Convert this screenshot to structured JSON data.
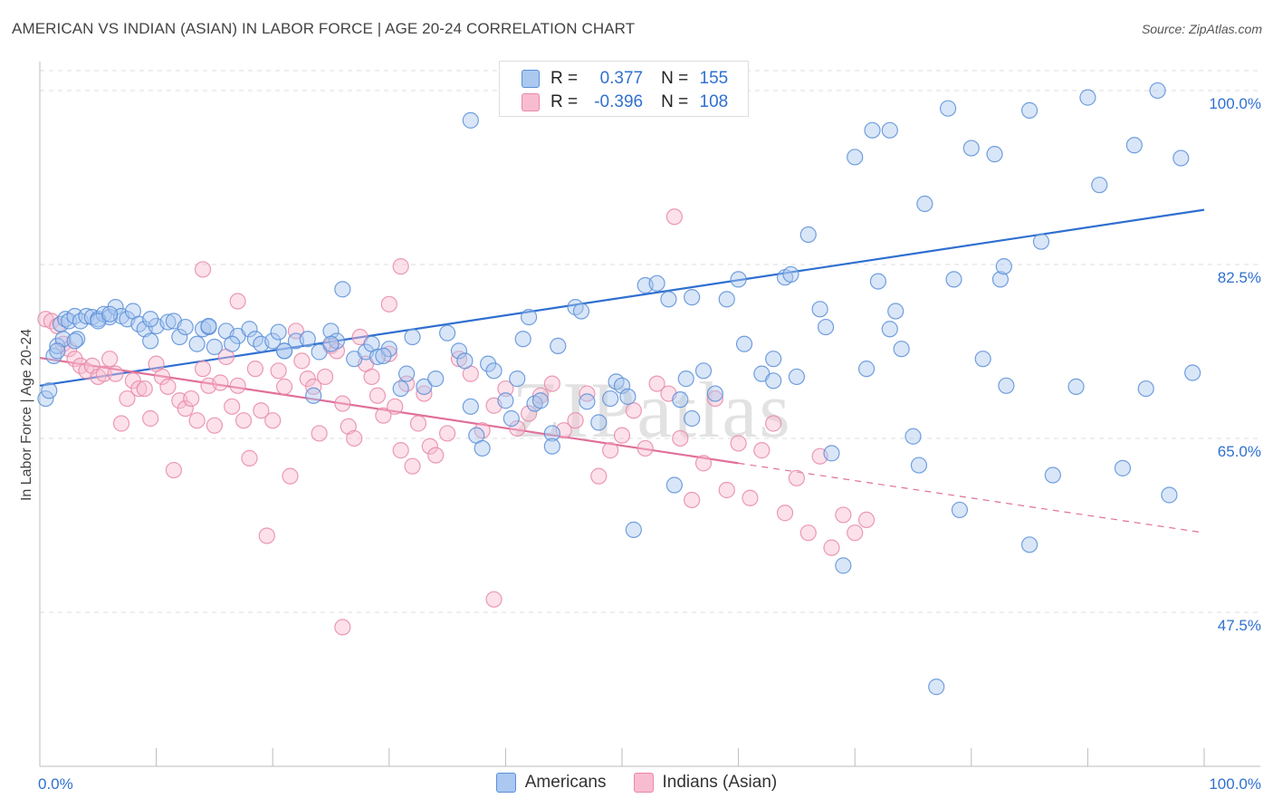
{
  "title": "AMERICAN VS INDIAN (ASIAN) IN LABOR FORCE | AGE 20-24 CORRELATION CHART",
  "source": "Source: ZipAtlas.com",
  "watermark": "ZIPatlas",
  "y_axis_label": "In Labor Force | Age 20-24",
  "legend": {
    "americans": {
      "r_label": "R =",
      "r_value": "0.377",
      "n_label": "N =",
      "n_value": "155"
    },
    "indians": {
      "r_label": "R =",
      "r_value": "-0.396",
      "n_label": "N =",
      "n_value": "108"
    }
  },
  "colors": {
    "americans_fill": "#aac8f0",
    "americans_stroke": "#5a8fd8",
    "americans_line": "#2f6fd0",
    "indians_fill": "#f8bcd0",
    "indians_stroke": "#e888a8",
    "indians_line": "#e0709a",
    "tick_text": "#3070d0",
    "grid": "#dddddd"
  },
  "chart_data": {
    "type": "scatter",
    "title": "AMERICAN VS INDIAN (ASIAN) IN LABOR FORCE | AGE 20-24 CORRELATION CHART",
    "xlabel": "",
    "ylabel": "In Labor Force | Age 20-24",
    "xlim": [
      0,
      100
    ],
    "ylim": [
      32,
      102
    ],
    "x_tick_labels": [
      "0.0%",
      "100.0%"
    ],
    "y_ticks": [
      {
        "value": 47.5,
        "label": "47.5%"
      },
      {
        "value": 65.0,
        "label": "65.0%"
      },
      {
        "value": 82.5,
        "label": "82.5%"
      },
      {
        "value": 100.0,
        "label": "100.0%"
      }
    ],
    "series": [
      {
        "name": "Americans",
        "r": 0.377,
        "n": 155,
        "trend": {
          "x": [
            0,
            100
          ],
          "y": [
            70.3,
            88.0
          ]
        },
        "points": [
          [
            0.5,
            69
          ],
          [
            0.8,
            69.8
          ],
          [
            1.2,
            73.3
          ],
          [
            1.5,
            74.3
          ],
          [
            1.8,
            76.5
          ],
          [
            2,
            75
          ],
          [
            2.2,
            77
          ],
          [
            2.5,
            76.8
          ],
          [
            3,
            77.3
          ],
          [
            3.2,
            75
          ],
          [
            3.5,
            76.8
          ],
          [
            4,
            77.3
          ],
          [
            4.5,
            77.2
          ],
          [
            5,
            77
          ],
          [
            5.5,
            77.5
          ],
          [
            6,
            77.2
          ],
          [
            6.5,
            78.2
          ],
          [
            7,
            77.3
          ],
          [
            7.5,
            77
          ],
          [
            8,
            77.8
          ],
          [
            8.5,
            76.5
          ],
          [
            9,
            76
          ],
          [
            9.5,
            74.8
          ],
          [
            10,
            76.3
          ],
          [
            11,
            76.7
          ],
          [
            11.5,
            76.8
          ],
          [
            12,
            75.2
          ],
          [
            12.5,
            76.2
          ],
          [
            13.5,
            74.5
          ],
          [
            14,
            76
          ],
          [
            14.5,
            76.2
          ],
          [
            15,
            74.2
          ],
          [
            16,
            75.8
          ],
          [
            17,
            75.3
          ],
          [
            18,
            76
          ],
          [
            18.5,
            75
          ],
          [
            19,
            74.5
          ],
          [
            20,
            74.8
          ],
          [
            20.5,
            75.7
          ],
          [
            21,
            73.8
          ],
          [
            22,
            74.8
          ],
          [
            23,
            75
          ],
          [
            23.5,
            69.3
          ],
          [
            24,
            73.7
          ],
          [
            25,
            75.8
          ],
          [
            25.5,
            74.8
          ],
          [
            26,
            80
          ],
          [
            27,
            73
          ],
          [
            28,
            73.7
          ],
          [
            28.5,
            74.5
          ],
          [
            29,
            73.2
          ],
          [
            30,
            74
          ],
          [
            31,
            70
          ],
          [
            31.5,
            71.5
          ],
          [
            32,
            75.2
          ],
          [
            33,
            70.2
          ],
          [
            34,
            71
          ],
          [
            35,
            75.6
          ],
          [
            36,
            73.8
          ],
          [
            37,
            68.2
          ],
          [
            37.5,
            65.3
          ],
          [
            38,
            64
          ],
          [
            38.5,
            72.5
          ],
          [
            39,
            71.8
          ],
          [
            40,
            68.8
          ],
          [
            40.5,
            67
          ],
          [
            41,
            71
          ],
          [
            41.5,
            75
          ],
          [
            42,
            77.2
          ],
          [
            42.5,
            68.5
          ],
          [
            43,
            68.8
          ],
          [
            44,
            65.5
          ],
          [
            44.5,
            74.3
          ],
          [
            46,
            78.2
          ],
          [
            46.5,
            77.8
          ],
          [
            47,
            68.7
          ],
          [
            48,
            66.6
          ],
          [
            49,
            69
          ],
          [
            49.5,
            70.7
          ],
          [
            50,
            70.3
          ],
          [
            50.5,
            69.2
          ],
          [
            51,
            55.8
          ],
          [
            52,
            80.4
          ],
          [
            53,
            80.6
          ],
          [
            54,
            79
          ],
          [
            54.5,
            60.3
          ],
          [
            55,
            68.9
          ],
          [
            56,
            79.2
          ],
          [
            57,
            71.8
          ],
          [
            58,
            69.5
          ],
          [
            59,
            79
          ],
          [
            60,
            81
          ],
          [
            60.5,
            74.5
          ],
          [
            62,
            71.5
          ],
          [
            63,
            70.8
          ],
          [
            64,
            81.2
          ],
          [
            64.5,
            81.5
          ],
          [
            65,
            71.2
          ],
          [
            66,
            85.5
          ],
          [
            67,
            78
          ],
          [
            67.5,
            76.2
          ],
          [
            68,
            63.5
          ],
          [
            69,
            52.2
          ],
          [
            70,
            93.3
          ],
          [
            71,
            72
          ],
          [
            72,
            80.8
          ],
          [
            73,
            76
          ],
          [
            73.5,
            77.8
          ],
          [
            74,
            74
          ],
          [
            75,
            65.2
          ],
          [
            75.5,
            62.3
          ],
          [
            76,
            88.6
          ],
          [
            77,
            40
          ],
          [
            78,
            98.2
          ],
          [
            78.5,
            81
          ],
          [
            79,
            57.8
          ],
          [
            80,
            94.2
          ],
          [
            81,
            73
          ],
          [
            82,
            93.6
          ],
          [
            82.5,
            81
          ],
          [
            82.8,
            82.3
          ],
          [
            83,
            70.3
          ],
          [
            85,
            54.3
          ],
          [
            86,
            84.8
          ],
          [
            87,
            61.3
          ],
          [
            89,
            70.2
          ],
          [
            91,
            90.5
          ],
          [
            93,
            62
          ],
          [
            94,
            94.5
          ],
          [
            95,
            70
          ],
          [
            97,
            59.3
          ],
          [
            98,
            93.2
          ],
          [
            99,
            71.6
          ],
          [
            1.5,
            73.8
          ],
          [
            3,
            74.8
          ],
          [
            5,
            76.8
          ],
          [
            6,
            77.5
          ],
          [
            9.5,
            77
          ],
          [
            14.5,
            76.3
          ],
          [
            16.5,
            74.5
          ],
          [
            21,
            73.8
          ],
          [
            25,
            74.5
          ],
          [
            29.5,
            73.3
          ],
          [
            36.5,
            72.8
          ],
          [
            44,
            64.2
          ],
          [
            55.5,
            71
          ],
          [
            56,
            67
          ],
          [
            63,
            73
          ],
          [
            71.5,
            96
          ],
          [
            73,
            96
          ],
          [
            37,
            97
          ],
          [
            85,
            98
          ],
          [
            90,
            99.3
          ],
          [
            96,
            100
          ]
        ]
      },
      {
        "name": "Indians (Asian)",
        "r": -0.396,
        "n": 108,
        "trend": {
          "x": [
            0,
            60
          ],
          "y": [
            73.1,
            62.5
          ]
        },
        "trend_dashed": {
          "x": [
            60,
            100
          ],
          "y": [
            62.5,
            55.5
          ]
        },
        "points": [
          [
            0.5,
            77
          ],
          [
            1,
            76.8
          ],
          [
            1.5,
            76.3
          ],
          [
            2,
            74.5
          ],
          [
            2.5,
            74
          ],
          [
            3,
            73
          ],
          [
            3.5,
            72.3
          ],
          [
            4,
            71.8
          ],
          [
            4.5,
            72.3
          ],
          [
            5,
            71.2
          ],
          [
            5.5,
            71.5
          ],
          [
            6,
            73
          ],
          [
            6.5,
            71.5
          ],
          [
            7,
            66.5
          ],
          [
            7.5,
            69
          ],
          [
            8,
            70.8
          ],
          [
            8.5,
            70
          ],
          [
            9,
            70
          ],
          [
            9.5,
            67
          ],
          [
            10,
            72.5
          ],
          [
            10.5,
            71.2
          ],
          [
            11,
            70.2
          ],
          [
            11.5,
            61.8
          ],
          [
            12,
            68.8
          ],
          [
            12.5,
            68
          ],
          [
            13,
            69
          ],
          [
            13.5,
            66.8
          ],
          [
            14,
            72
          ],
          [
            14.5,
            70.3
          ],
          [
            15,
            66.3
          ],
          [
            15.5,
            70.6
          ],
          [
            16,
            73.2
          ],
          [
            16.5,
            68.2
          ],
          [
            17,
            70.3
          ],
          [
            17.5,
            66.8
          ],
          [
            18,
            63
          ],
          [
            18.5,
            72
          ],
          [
            19,
            67.8
          ],
          [
            19.5,
            55.2
          ],
          [
            20,
            66.8
          ],
          [
            20.5,
            71.8
          ],
          [
            21,
            70.2
          ],
          [
            21.5,
            61.2
          ],
          [
            22,
            75.8
          ],
          [
            22.5,
            72.8
          ],
          [
            23,
            71
          ],
          [
            23.5,
            70.2
          ],
          [
            24,
            65.5
          ],
          [
            24.5,
            71.2
          ],
          [
            25,
            74.3
          ],
          [
            25.5,
            73.8
          ],
          [
            26,
            68.5
          ],
          [
            26.5,
            66.2
          ],
          [
            27,
            65
          ],
          [
            27.5,
            75.2
          ],
          [
            28,
            72.5
          ],
          [
            28.5,
            71.2
          ],
          [
            29,
            69.3
          ],
          [
            29.5,
            67.3
          ],
          [
            30,
            73.5
          ],
          [
            30.5,
            68.2
          ],
          [
            31,
            63.8
          ],
          [
            31.5,
            70.5
          ],
          [
            32,
            62.2
          ],
          [
            32.5,
            66.5
          ],
          [
            33,
            69.5
          ],
          [
            33.5,
            64.2
          ],
          [
            34,
            63.3
          ],
          [
            35,
            65.5
          ],
          [
            36,
            73
          ],
          [
            37,
            71.5
          ],
          [
            38,
            65.8
          ],
          [
            39,
            68.3
          ],
          [
            40,
            70
          ],
          [
            41,
            66
          ],
          [
            42,
            67.5
          ],
          [
            43,
            69.3
          ],
          [
            44,
            70.5
          ],
          [
            45,
            65.8
          ],
          [
            46,
            66.8
          ],
          [
            47,
            69.5
          ],
          [
            48,
            61.2
          ],
          [
            49,
            63.8
          ],
          [
            50,
            65.3
          ],
          [
            51,
            67.8
          ],
          [
            52,
            64
          ],
          [
            53,
            70.5
          ],
          [
            54,
            69.5
          ],
          [
            55,
            65
          ],
          [
            56,
            58.8
          ],
          [
            57,
            62.5
          ],
          [
            58,
            69
          ],
          [
            59,
            59.8
          ],
          [
            60,
            64.5
          ],
          [
            61,
            59
          ],
          [
            62,
            63.8
          ],
          [
            63,
            66.5
          ],
          [
            64,
            57.5
          ],
          [
            65,
            61
          ],
          [
            66,
            55.5
          ],
          [
            67,
            63.2
          ],
          [
            68,
            54
          ],
          [
            69,
            57.3
          ],
          [
            70,
            55.5
          ],
          [
            71,
            56.8
          ],
          [
            54.5,
            87.3
          ],
          [
            31,
            82.3
          ],
          [
            26,
            46
          ],
          [
            39,
            48.8
          ],
          [
            30,
            78.5
          ],
          [
            17,
            78.8
          ],
          [
            14,
            82
          ]
        ]
      }
    ]
  }
}
